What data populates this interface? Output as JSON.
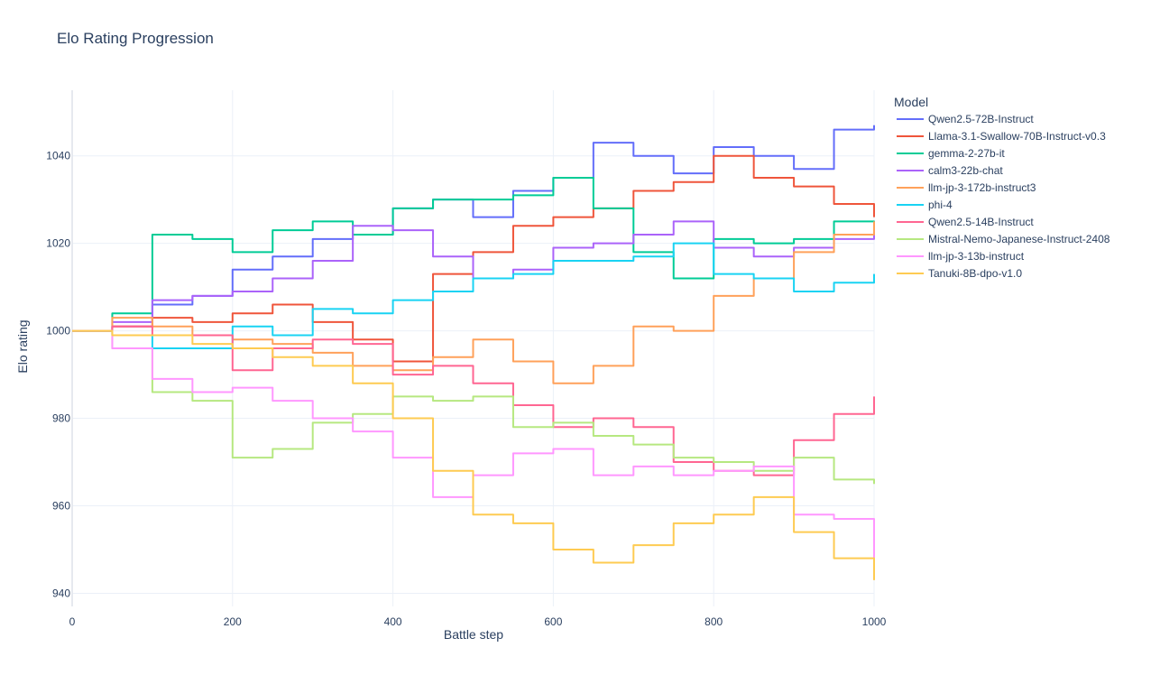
{
  "chart_data": {
    "type": "line",
    "title": "Elo Rating Progression",
    "xlabel": "Battle step",
    "ylabel": "Elo rating",
    "xlim": [
      0,
      1000
    ],
    "ylim": [
      937,
      1055
    ],
    "xticks": [
      0,
      200,
      400,
      600,
      800,
      1000
    ],
    "yticks": [
      940,
      960,
      980,
      1000,
      1020,
      1040
    ],
    "grid": true,
    "legend_title": "Model",
    "legend_position": "right",
    "series": [
      {
        "name": "Qwen2.5-72B-Instruct",
        "color": "#636efa",
        "x": [
          0,
          50,
          100,
          150,
          200,
          250,
          300,
          350,
          400,
          450,
          500,
          550,
          600,
          650,
          700,
          750,
          800,
          850,
          900,
          950,
          1000
        ],
        "y": [
          1000,
          1001,
          1006,
          1008,
          1014,
          1017,
          1021,
          1022,
          1028,
          1030,
          1026,
          1032,
          1035,
          1043,
          1040,
          1036,
          1042,
          1040,
          1037,
          1046,
          1047
        ]
      },
      {
        "name": "Llama-3.1-Swallow-70B-Instruct-v0.3",
        "color": "#EF553B",
        "x": [
          0,
          50,
          100,
          150,
          200,
          250,
          300,
          350,
          400,
          450,
          500,
          550,
          600,
          650,
          700,
          750,
          800,
          850,
          900,
          950,
          1000
        ],
        "y": [
          1000,
          1001,
          1003,
          1002,
          1004,
          1006,
          1002,
          998,
          993,
          1013,
          1018,
          1024,
          1026,
          1028,
          1032,
          1034,
          1040,
          1035,
          1033,
          1029,
          1026
        ]
      },
      {
        "name": "gemma-2-27b-it",
        "color": "#00cc96",
        "x": [
          0,
          50,
          100,
          150,
          200,
          250,
          300,
          350,
          400,
          450,
          500,
          550,
          600,
          650,
          700,
          750,
          800,
          850,
          900,
          950,
          1000
        ],
        "y": [
          1000,
          1004,
          1022,
          1021,
          1018,
          1023,
          1025,
          1022,
          1028,
          1030,
          1030,
          1031,
          1035,
          1028,
          1018,
          1012,
          1021,
          1020,
          1021,
          1025,
          1024
        ]
      },
      {
        "name": "calm3-22b-chat",
        "color": "#ab63fa",
        "x": [
          0,
          50,
          100,
          150,
          200,
          250,
          300,
          350,
          400,
          450,
          500,
          550,
          600,
          650,
          700,
          750,
          800,
          850,
          900,
          950,
          1000
        ],
        "y": [
          1000,
          1002,
          1007,
          1008,
          1009,
          1012,
          1016,
          1024,
          1023,
          1017,
          1012,
          1014,
          1019,
          1020,
          1022,
          1025,
          1019,
          1017,
          1019,
          1021,
          1024
        ]
      },
      {
        "name": "llm-jp-3-172b-instruct3",
        "color": "#FFA15A",
        "x": [
          0,
          50,
          100,
          150,
          200,
          250,
          300,
          350,
          400,
          450,
          500,
          550,
          600,
          650,
          700,
          750,
          800,
          850,
          900,
          950,
          1000
        ],
        "y": [
          1000,
          1003,
          1001,
          999,
          998,
          997,
          995,
          992,
          991,
          994,
          998,
          993,
          988,
          992,
          1001,
          1000,
          1008,
          1012,
          1018,
          1022,
          1025
        ]
      },
      {
        "name": "phi-4",
        "color": "#19d3f3",
        "x": [
          0,
          50,
          100,
          150,
          200,
          250,
          300,
          350,
          400,
          450,
          500,
          550,
          600,
          650,
          700,
          750,
          800,
          850,
          900,
          950,
          1000
        ],
        "y": [
          1000,
          999,
          996,
          996,
          1001,
          999,
          1005,
          1004,
          1007,
          1009,
          1012,
          1013,
          1016,
          1016,
          1017,
          1020,
          1013,
          1012,
          1009,
          1011,
          1013
        ]
      },
      {
        "name": "Qwen2.5-14B-Instruct",
        "color": "#FF6692",
        "x": [
          0,
          50,
          100,
          150,
          200,
          250,
          300,
          350,
          400,
          450,
          500,
          550,
          600,
          650,
          700,
          750,
          800,
          850,
          900,
          950,
          1000
        ],
        "y": [
          1000,
          1001,
          999,
          999,
          991,
          996,
          998,
          997,
          990,
          992,
          988,
          983,
          978,
          980,
          978,
          970,
          968,
          967,
          975,
          981,
          985
        ]
      },
      {
        "name": "Mistral-Nemo-Japanese-Instruct-2408",
        "color": "#B6E880",
        "x": [
          0,
          50,
          100,
          150,
          200,
          250,
          300,
          350,
          400,
          450,
          500,
          550,
          600,
          650,
          700,
          750,
          800,
          850,
          900,
          950,
          1000
        ],
        "y": [
          1000,
          996,
          986,
          984,
          971,
          973,
          979,
          981,
          985,
          984,
          985,
          978,
          979,
          976,
          974,
          971,
          970,
          968,
          971,
          966,
          965
        ]
      },
      {
        "name": "llm-jp-3-13b-instruct",
        "color": "#FF97FF",
        "x": [
          0,
          50,
          100,
          150,
          200,
          250,
          300,
          350,
          400,
          450,
          500,
          550,
          600,
          650,
          700,
          750,
          800,
          850,
          900,
          950,
          1000
        ],
        "y": [
          1000,
          996,
          989,
          986,
          987,
          984,
          980,
          977,
          971,
          962,
          967,
          972,
          973,
          967,
          969,
          967,
          968,
          969,
          958,
          957,
          947
        ]
      },
      {
        "name": "Tanuki-8B-dpo-v1.0",
        "color": "#FECB52",
        "x": [
          0,
          50,
          100,
          150,
          200,
          250,
          300,
          350,
          400,
          450,
          500,
          550,
          600,
          650,
          700,
          750,
          800,
          850,
          900,
          950,
          1000
        ],
        "y": [
          1000,
          999,
          999,
          997,
          996,
          994,
          992,
          988,
          980,
          968,
          958,
          956,
          950,
          947,
          951,
          956,
          958,
          962,
          954,
          948,
          943
        ]
      }
    ]
  }
}
